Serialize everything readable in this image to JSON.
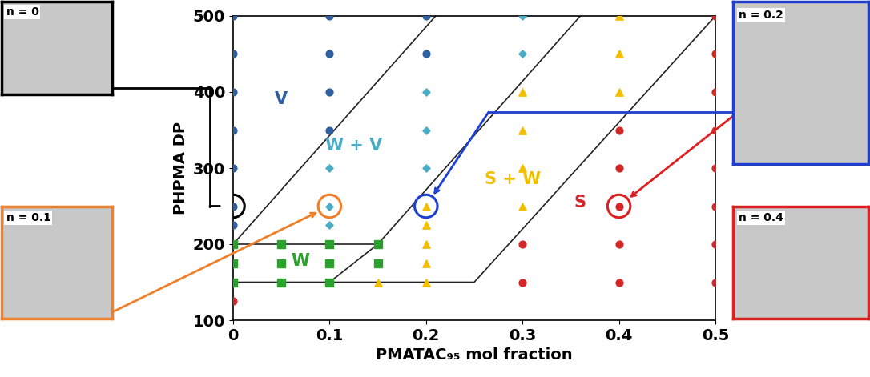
{
  "chart_data": {
    "type": "scatter",
    "xlabel": "PMATAC₉₅ mol fraction",
    "ylabel": "PHPMA DP",
    "xlim": [
      0,
      0.5
    ],
    "ylim": [
      100,
      500
    ],
    "xticks": [
      0,
      0.1,
      0.2,
      0.3,
      0.4,
      0.5
    ],
    "yticks": [
      100,
      200,
      300,
      400,
      500
    ],
    "grid": false,
    "series": [
      {
        "name": "V",
        "color": "#2e5fa3",
        "marker": "circle",
        "x": [
          0,
          0,
          0,
          0,
          0,
          0,
          0,
          0.1,
          0.1,
          0.1,
          0.1,
          0.2,
          0.2
        ],
        "y": [
          225,
          250,
          300,
          350,
          400,
          450,
          500,
          350,
          400,
          450,
          500,
          450,
          500
        ]
      },
      {
        "name": "W + V",
        "color": "#4bacc6",
        "marker": "diamond",
        "x": [
          0.1,
          0.1,
          0.1,
          0.2,
          0.2,
          0.2,
          0.3,
          0.3
        ],
        "y": [
          225,
          250,
          300,
          300,
          350,
          400,
          450,
          500
        ]
      },
      {
        "name": "W",
        "color": "#2ca02c",
        "marker": "square",
        "x": [
          0,
          0,
          0,
          0.05,
          0.05,
          0.05,
          0.1,
          0.1,
          0.1,
          0.15,
          0.15
        ],
        "y": [
          150,
          175,
          200,
          150,
          175,
          200,
          150,
          175,
          200,
          175,
          200
        ]
      },
      {
        "name": "S + W",
        "color": "#f0c000",
        "marker": "triangle",
        "x": [
          0.15,
          0.2,
          0.2,
          0.2,
          0.2,
          0.2,
          0.3,
          0.3,
          0.3,
          0.3,
          0.4,
          0.4,
          0.4
        ],
        "y": [
          150,
          150,
          175,
          200,
          225,
          250,
          250,
          300,
          350,
          400,
          400,
          450,
          500
        ]
      },
      {
        "name": "S",
        "color": "#d62728",
        "marker": "circle",
        "x": [
          0,
          0.3,
          0.3,
          0.4,
          0.4,
          0.4,
          0.4,
          0.4,
          0.5,
          0.5,
          0.5,
          0.5,
          0.5,
          0.5,
          0.5,
          0.5
        ],
        "y": [
          125,
          150,
          200,
          150,
          200,
          250,
          300,
          350,
          150,
          200,
          250,
          300,
          350,
          400,
          450,
          500
        ]
      }
    ],
    "boundaries": [
      {
        "x": [
          0,
          0.21
        ],
        "y": [
          200,
          500
        ]
      },
      {
        "x": [
          0.1,
          0.15,
          0.36
        ],
        "y": [
          150,
          200,
          500
        ]
      },
      {
        "x": [
          0,
          0.25,
          0.5
        ],
        "y": [
          150,
          150,
          500
        ]
      },
      {
        "x": [
          0,
          0.15
        ],
        "y": [
          200,
          200
        ]
      }
    ],
    "insets": [
      {
        "label": "n = 0",
        "color": "#000000",
        "x": 0,
        "y": 250
      },
      {
        "label": "n = 0.1",
        "color": "#f07f2a",
        "x": 0.1,
        "y": 250
      },
      {
        "label": "n = 0.2",
        "color": "#1f3fd0",
        "x": 0.2,
        "y": 250
      },
      {
        "label": "n = 0.4",
        "color": "#e02020",
        "x": 0.4,
        "y": 250
      }
    ]
  }
}
